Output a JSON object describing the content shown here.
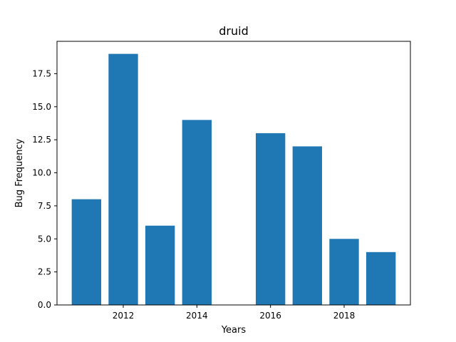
{
  "chart_data": {
    "type": "bar",
    "title": "druid",
    "xlabel": "Years",
    "ylabel": "Bug Frequency",
    "x": [
      2011,
      2012,
      2013,
      2014,
      2016,
      2017,
      2018,
      2019
    ],
    "values": [
      8,
      19,
      6,
      14,
      13,
      12,
      5,
      4
    ],
    "xlim": [
      2010.2,
      2019.8
    ],
    "ylim": [
      0,
      19.95
    ],
    "x_ticks": [
      2012,
      2014,
      2016,
      2018
    ],
    "x_tick_labels": [
      "2012",
      "2014",
      "2016",
      "2018"
    ],
    "y_ticks": [
      0,
      2.5,
      5,
      7.5,
      10,
      12.5,
      15,
      17.5
    ],
    "y_tick_labels": [
      "0.0",
      "2.5",
      "5.0",
      "7.5",
      "10.0",
      "12.5",
      "15.0",
      "17.5"
    ],
    "bar_color": "#1f77b4",
    "grid": false,
    "legend": false
  }
}
